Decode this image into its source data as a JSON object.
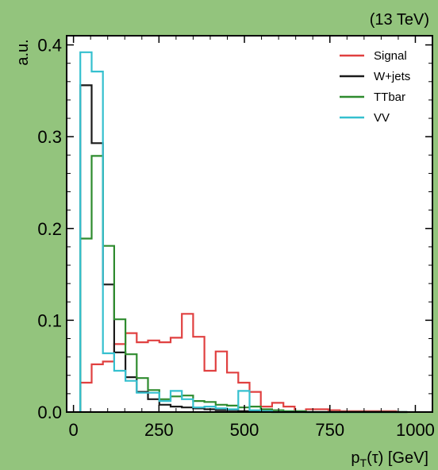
{
  "header": {
    "energy_label": "(13 TeV)"
  },
  "chart_data": {
    "type": "histogram-step",
    "xlabel_main": "p",
    "xlabel_sub": "T",
    "xlabel_rest": "(τ) [GeV]",
    "ylabel": "a.u.",
    "xlim": [
      -20,
      1050
    ],
    "ylim": [
      0,
      0.41
    ],
    "x_ticks": [
      0,
      250,
      500,
      750,
      1000
    ],
    "x_tick_labels": [
      "0",
      "250",
      "500",
      "750",
      "1000"
    ],
    "y_ticks": [
      0,
      0.1,
      0.2,
      0.3,
      0.4
    ],
    "y_tick_labels": [
      "0.0",
      "0.1",
      "0.2",
      "0.3",
      "0.4"
    ],
    "legend_position": "top-right",
    "bin_edges": [
      20,
      53,
      86,
      119,
      152,
      185,
      218,
      251,
      284,
      317,
      350,
      383,
      416,
      449,
      482,
      515,
      548,
      581,
      614,
      647,
      680,
      713,
      746,
      779,
      812,
      845,
      878,
      911,
      944,
      977
    ],
    "series": [
      {
        "name": "Signal",
        "color": "#e04040",
        "values": [
          0.032,
          0.052,
          0.055,
          0.074,
          0.086,
          0.076,
          0.078,
          0.076,
          0.081,
          0.107,
          0.082,
          0.045,
          0.066,
          0.043,
          0.032,
          0.022,
          0.006,
          0.01,
          0.006,
          0.001,
          0.003,
          0.003,
          0.002,
          0.001,
          0.001,
          0.001,
          0.001,
          0.001,
          0.0
        ]
      },
      {
        "name": "W+jets",
        "color": "#1a1a1a",
        "values": [
          0.356,
          0.293,
          0.139,
          0.065,
          0.038,
          0.022,
          0.014,
          0.008,
          0.006,
          0.005,
          0.004,
          0.003,
          0.002,
          0.002,
          0.001,
          0.001,
          0.001,
          0.0,
          0.0,
          0.0,
          0.0,
          0.0,
          0.0,
          0.0,
          0.0,
          0.0,
          0.0,
          0.0,
          0.0
        ]
      },
      {
        "name": "TTbar",
        "color": "#2e8b2e",
        "values": [
          0.189,
          0.279,
          0.181,
          0.101,
          0.063,
          0.037,
          0.024,
          0.014,
          0.017,
          0.018,
          0.012,
          0.011,
          0.008,
          0.007,
          0.005,
          0.006,
          0.003,
          0.002,
          0.001,
          0.001,
          0.0,
          0.0,
          0.0,
          0.0,
          0.0,
          0.0,
          0.0,
          0.0,
          0.0
        ]
      },
      {
        "name": "VV",
        "color": "#35c0cf",
        "values": [
          0.392,
          0.371,
          0.064,
          0.045,
          0.034,
          0.021,
          0.021,
          0.012,
          0.023,
          0.014,
          0.005,
          0.006,
          0.004,
          0.003,
          0.023,
          0.002,
          0.001,
          0.0,
          0.0,
          0.0,
          0.0,
          0.0,
          0.0,
          0.0,
          0.0,
          0.0,
          0.0,
          0.0,
          0.0
        ]
      }
    ]
  }
}
